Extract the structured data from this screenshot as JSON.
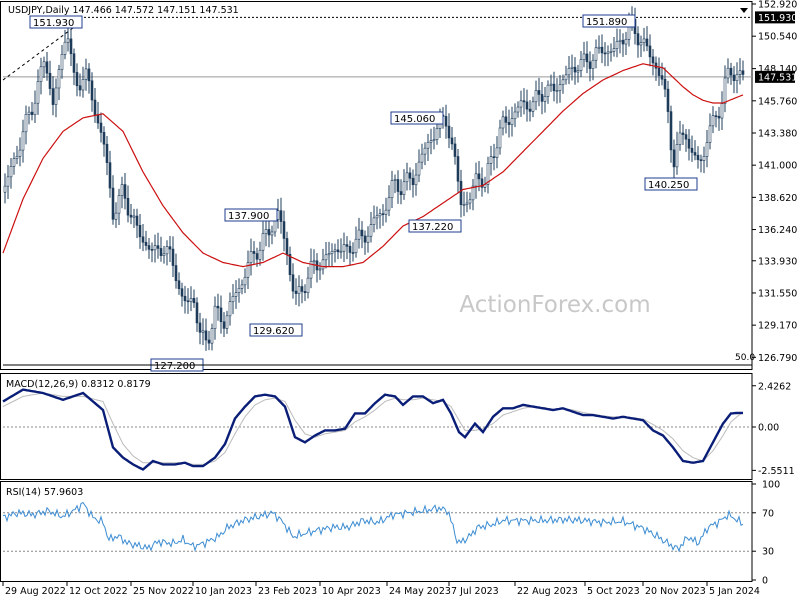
{
  "symbol_header": "USDJPY,Daily",
  "ohlc": {
    "open": 147.466,
    "high": 147.572,
    "low": 147.151,
    "close": 147.531
  },
  "watermark": "ActionForex.com",
  "chart_data": [
    {
      "type": "candlestick",
      "title": "USDJPY,Daily  147.466 147.572 147.151 147.531",
      "ylim": [
        126.0,
        152.92
      ],
      "price_ticks": [
        "152.920",
        "150.540",
        "148.140",
        "145.760",
        "143.380",
        "141.000",
        "138.620",
        "136.240",
        "133.930",
        "131.550",
        "129.170",
        "126.790"
      ],
      "price_tick_values": [
        152.92,
        150.54,
        148.14,
        145.76,
        143.38,
        141.0,
        138.62,
        136.24,
        133.93,
        131.55,
        129.17,
        126.79
      ],
      "x_dates": [
        "29 Aug 2022",
        "12 Oct 2022",
        "25 Nov 2022",
        "10 Jan 2023",
        "23 Feb 2023",
        "10 Apr 2023",
        "24 May 2023",
        "7 Jul 2023",
        "22 Aug 2023",
        "5 Oct 2023",
        "20 Nov 2023",
        "5 Jan 2024"
      ],
      "close_anchors": [
        [
          0,
          139.0
        ],
        [
          12,
          141.5
        ],
        [
          25,
          144.5
        ],
        [
          34,
          146.5
        ],
        [
          42,
          149.0
        ],
        [
          50,
          145.5
        ],
        [
          58,
          148.5
        ],
        [
          64,
          151.5
        ],
        [
          72,
          146.5
        ],
        [
          82,
          148.0
        ],
        [
          92,
          145.0
        ],
        [
          100,
          143.0
        ],
        [
          110,
          137.5
        ],
        [
          120,
          139.0
        ],
        [
          135,
          136.0
        ],
        [
          150,
          134.5
        ],
        [
          160,
          135.0
        ],
        [
          172,
          133.5
        ],
        [
          180,
          130.5
        ],
        [
          190,
          131.5
        ],
        [
          196,
          128.5
        ],
        [
          204,
          128.0
        ],
        [
          212,
          130.0
        ],
        [
          222,
          129.5
        ],
        [
          232,
          131.5
        ],
        [
          240,
          132.5
        ],
        [
          250,
          134.5
        ],
        [
          258,
          135.0
        ],
        [
          268,
          136.5
        ],
        [
          276,
          137.4
        ],
        [
          284,
          134.5
        ],
        [
          292,
          131.0
        ],
        [
          300,
          132.0
        ],
        [
          310,
          133.5
        ],
        [
          322,
          134.0
        ],
        [
          334,
          135.0
        ],
        [
          344,
          134.5
        ],
        [
          352,
          135.5
        ],
        [
          360,
          135.5
        ],
        [
          372,
          137.0
        ],
        [
          380,
          137.5
        ],
        [
          390,
          139.5
        ],
        [
          398,
          139.5
        ],
        [
          410,
          140.0
        ],
        [
          418,
          141.5
        ],
        [
          428,
          143.0
        ],
        [
          436,
          144.0
        ],
        [
          444,
          144.5
        ],
        [
          452,
          141.0
        ],
        [
          458,
          138.5
        ],
        [
          466,
          138.0
        ],
        [
          474,
          140.5
        ],
        [
          482,
          139.5
        ],
        [
          490,
          142.0
        ],
        [
          500,
          144.0
        ],
        [
          508,
          144.5
        ],
        [
          518,
          145.5
        ],
        [
          530,
          145.5
        ],
        [
          540,
          146.5
        ],
        [
          550,
          146.5
        ],
        [
          562,
          147.5
        ],
        [
          574,
          148.5
        ],
        [
          582,
          148.5
        ],
        [
          592,
          149.2
        ],
        [
          602,
          149.5
        ],
        [
          612,
          149.5
        ],
        [
          620,
          150.5
        ],
        [
          628,
          151.2
        ],
        [
          636,
          150.5
        ],
        [
          644,
          149.5
        ],
        [
          652,
          148.5
        ],
        [
          660,
          147.0
        ],
        [
          666,
          144.5
        ],
        [
          670,
          141.0
        ],
        [
          676,
          142.5
        ],
        [
          682,
          144.0
        ],
        [
          688,
          141.5
        ],
        [
          694,
          141.5
        ],
        [
          700,
          141.5
        ],
        [
          706,
          143.5
        ],
        [
          712,
          144.5
        ],
        [
          718,
          145.5
        ],
        [
          724,
          147.5
        ],
        [
          728,
          148.0
        ],
        [
          732,
          147.8
        ],
        [
          736,
          147.6
        ],
        [
          740,
          147.531
        ]
      ],
      "moving_average_anchors": [
        [
          0,
          134.5
        ],
        [
          20,
          138.5
        ],
        [
          40,
          141.5
        ],
        [
          60,
          143.5
        ],
        [
          80,
          144.5
        ],
        [
          100,
          144.8
        ],
        [
          120,
          143.5
        ],
        [
          140,
          140.5
        ],
        [
          160,
          138.0
        ],
        [
          180,
          136.0
        ],
        [
          200,
          134.5
        ],
        [
          220,
          133.8
        ],
        [
          240,
          133.5
        ],
        [
          260,
          133.8
        ],
        [
          280,
          134.5
        ],
        [
          300,
          133.8
        ],
        [
          320,
          133.5
        ],
        [
          340,
          133.5
        ],
        [
          360,
          133.8
        ],
        [
          380,
          135.0
        ],
        [
          400,
          136.5
        ],
        [
          420,
          137.2
        ],
        [
          440,
          138.2
        ],
        [
          460,
          139.2
        ],
        [
          480,
          139.5
        ],
        [
          500,
          140.5
        ],
        [
          520,
          142.0
        ],
        [
          540,
          143.5
        ],
        [
          560,
          145.0
        ],
        [
          580,
          146.3
        ],
        [
          600,
          147.3
        ],
        [
          620,
          148.0
        ],
        [
          640,
          148.5
        ],
        [
          660,
          148.2
        ],
        [
          670,
          147.5
        ],
        [
          680,
          146.8
        ],
        [
          690,
          146.2
        ],
        [
          700,
          145.8
        ],
        [
          710,
          145.6
        ],
        [
          720,
          145.6
        ],
        [
          730,
          145.9
        ],
        [
          740,
          146.2
        ]
      ],
      "current_price": "147.531",
      "current_price_value": 147.531,
      "reference_level": "151.930",
      "reference_level_value": 151.93,
      "annotations": [
        {
          "label": "151.930",
          "value": 151.93
        },
        {
          "label": "151.890",
          "value": 151.89
        },
        {
          "label": "145.060",
          "value": 145.06
        },
        {
          "label": "137.900",
          "value": 137.9
        },
        {
          "label": "137.220",
          "value": 137.22
        },
        {
          "label": "140.250",
          "value": 140.25
        },
        {
          "label": "129.620",
          "value": 129.62
        },
        {
          "label": "127.200",
          "value": 127.2
        }
      ],
      "fifty_label": "50.0"
    },
    {
      "type": "line",
      "title": "MACD(12,26,9) 0.8312 0.8179",
      "macd": 0.8312,
      "signal": 0.8179,
      "ylim": [
        -3.0,
        3.0
      ],
      "ticks": [
        "2.4262",
        "0.00",
        "-2.5511"
      ],
      "tick_values": [
        2.4262,
        0.0,
        -2.5511
      ],
      "macd_anchors": [
        [
          0,
          1.5
        ],
        [
          20,
          2.2
        ],
        [
          40,
          2.0
        ],
        [
          60,
          1.6
        ],
        [
          80,
          2.0
        ],
        [
          100,
          1.0
        ],
        [
          110,
          -1.2
        ],
        [
          120,
          -1.8
        ],
        [
          130,
          -2.2
        ],
        [
          140,
          -2.5
        ],
        [
          150,
          -2.0
        ],
        [
          160,
          -2.2
        ],
        [
          172,
          -2.2
        ],
        [
          182,
          -2.1
        ],
        [
          190,
          -2.3
        ],
        [
          200,
          -2.3
        ],
        [
          212,
          -1.8
        ],
        [
          222,
          -1.0
        ],
        [
          232,
          0.5
        ],
        [
          242,
          1.2
        ],
        [
          252,
          1.8
        ],
        [
          262,
          1.9
        ],
        [
          272,
          1.8
        ],
        [
          282,
          1.2
        ],
        [
          292,
          -0.6
        ],
        [
          302,
          -0.9
        ],
        [
          312,
          -0.5
        ],
        [
          322,
          -0.2
        ],
        [
          332,
          -0.2
        ],
        [
          342,
          -0.1
        ],
        [
          352,
          0.8
        ],
        [
          362,
          0.8
        ],
        [
          372,
          1.4
        ],
        [
          382,
          1.9
        ],
        [
          392,
          1.8
        ],
        [
          400,
          1.3
        ],
        [
          410,
          1.8
        ],
        [
          420,
          1.8
        ],
        [
          430,
          1.4
        ],
        [
          440,
          1.6
        ],
        [
          448,
          0.8
        ],
        [
          456,
          -0.3
        ],
        [
          462,
          -0.6
        ],
        [
          472,
          0.2
        ],
        [
          480,
          -0.3
        ],
        [
          490,
          0.6
        ],
        [
          500,
          1.1
        ],
        [
          510,
          1.1
        ],
        [
          520,
          1.3
        ],
        [
          530,
          1.2
        ],
        [
          540,
          1.1
        ],
        [
          550,
          1.0
        ],
        [
          560,
          1.1
        ],
        [
          570,
          0.9
        ],
        [
          580,
          0.7
        ],
        [
          590,
          0.7
        ],
        [
          600,
          0.6
        ],
        [
          610,
          0.5
        ],
        [
          620,
          0.6
        ],
        [
          630,
          0.5
        ],
        [
          640,
          0.4
        ],
        [
          650,
          -0.2
        ],
        [
          660,
          -0.5
        ],
        [
          670,
          -1.2
        ],
        [
          680,
          -2.0
        ],
        [
          690,
          -2.1
        ],
        [
          700,
          -2.0
        ],
        [
          710,
          -0.9
        ],
        [
          720,
          0.2
        ],
        [
          728,
          0.8
        ],
        [
          736,
          0.83
        ],
        [
          740,
          0.8312
        ]
      ],
      "signal_anchors": [
        [
          0,
          1.2
        ],
        [
          20,
          1.8
        ],
        [
          40,
          2.0
        ],
        [
          60,
          1.8
        ],
        [
          80,
          1.8
        ],
        [
          100,
          1.5
        ],
        [
          110,
          0.2
        ],
        [
          120,
          -1.0
        ],
        [
          130,
          -1.7
        ],
        [
          140,
          -2.1
        ],
        [
          150,
          -2.1
        ],
        [
          160,
          -2.1
        ],
        [
          172,
          -2.1
        ],
        [
          182,
          -2.1
        ],
        [
          190,
          -2.2
        ],
        [
          200,
          -2.2
        ],
        [
          212,
          -2.0
        ],
        [
          222,
          -1.5
        ],
        [
          232,
          -0.4
        ],
        [
          242,
          0.6
        ],
        [
          252,
          1.3
        ],
        [
          262,
          1.6
        ],
        [
          272,
          1.7
        ],
        [
          282,
          1.5
        ],
        [
          292,
          0.4
        ],
        [
          302,
          -0.4
        ],
        [
          312,
          -0.6
        ],
        [
          322,
          -0.4
        ],
        [
          332,
          -0.3
        ],
        [
          342,
          -0.2
        ],
        [
          352,
          0.3
        ],
        [
          362,
          0.6
        ],
        [
          372,
          1.0
        ],
        [
          382,
          1.5
        ],
        [
          392,
          1.7
        ],
        [
          400,
          1.6
        ],
        [
          410,
          1.6
        ],
        [
          420,
          1.7
        ],
        [
          430,
          1.6
        ],
        [
          440,
          1.5
        ],
        [
          448,
          1.2
        ],
        [
          456,
          0.4
        ],
        [
          462,
          -0.2
        ],
        [
          472,
          -0.2
        ],
        [
          480,
          -0.1
        ],
        [
          490,
          0.2
        ],
        [
          500,
          0.7
        ],
        [
          510,
          0.9
        ],
        [
          520,
          1.1
        ],
        [
          530,
          1.2
        ],
        [
          540,
          1.15
        ],
        [
          550,
          1.05
        ],
        [
          560,
          1.05
        ],
        [
          570,
          1.0
        ],
        [
          580,
          0.85
        ],
        [
          590,
          0.75
        ],
        [
          600,
          0.65
        ],
        [
          610,
          0.6
        ],
        [
          620,
          0.58
        ],
        [
          630,
          0.55
        ],
        [
          640,
          0.47
        ],
        [
          650,
          0.15
        ],
        [
          660,
          -0.2
        ],
        [
          670,
          -0.7
        ],
        [
          680,
          -1.4
        ],
        [
          690,
          -1.8
        ],
        [
          700,
          -2.0
        ],
        [
          710,
          -1.4
        ],
        [
          720,
          -0.5
        ],
        [
          728,
          0.3
        ],
        [
          736,
          0.7
        ],
        [
          740,
          0.8179
        ]
      ]
    },
    {
      "type": "line",
      "title": "RSI(14) 57.9603",
      "value": 57.9603,
      "ylim": [
        0,
        100
      ],
      "ticks": [
        "100",
        "70",
        "30",
        "0"
      ],
      "tick_values": [
        100,
        70,
        30,
        0
      ],
      "rsi_anchors": [
        [
          0,
          65
        ],
        [
          15,
          70
        ],
        [
          30,
          68
        ],
        [
          45,
          72
        ],
        [
          60,
          66
        ],
        [
          75,
          75
        ],
        [
          80,
          80
        ],
        [
          90,
          65
        ],
        [
          100,
          60
        ],
        [
          106,
          42
        ],
        [
          115,
          46
        ],
        [
          125,
          38
        ],
        [
          135,
          36
        ],
        [
          145,
          33
        ],
        [
          155,
          40
        ],
        [
          170,
          38
        ],
        [
          180,
          42
        ],
        [
          190,
          35
        ],
        [
          200,
          38
        ],
        [
          215,
          45
        ],
        [
          225,
          55
        ],
        [
          240,
          62
        ],
        [
          255,
          66
        ],
        [
          270,
          70
        ],
        [
          280,
          60
        ],
        [
          290,
          45
        ],
        [
          300,
          48
        ],
        [
          315,
          52
        ],
        [
          330,
          55
        ],
        [
          345,
          55
        ],
        [
          360,
          62
        ],
        [
          375,
          60
        ],
        [
          390,
          68
        ],
        [
          405,
          70
        ],
        [
          420,
          72
        ],
        [
          435,
          75
        ],
        [
          445,
          72
        ],
        [
          455,
          38
        ],
        [
          465,
          44
        ],
        [
          475,
          55
        ],
        [
          490,
          58
        ],
        [
          500,
          62
        ],
        [
          520,
          62
        ],
        [
          540,
          62
        ],
        [
          560,
          63
        ],
        [
          580,
          62
        ],
        [
          600,
          60
        ],
        [
          620,
          61
        ],
        [
          640,
          54
        ],
        [
          655,
          45
        ],
        [
          665,
          38
        ],
        [
          675,
          32
        ],
        [
          685,
          45
        ],
        [
          695,
          38
        ],
        [
          705,
          55
        ],
        [
          715,
          60
        ],
        [
          725,
          68
        ],
        [
          732,
          64
        ],
        [
          740,
          57.96
        ]
      ]
    }
  ]
}
